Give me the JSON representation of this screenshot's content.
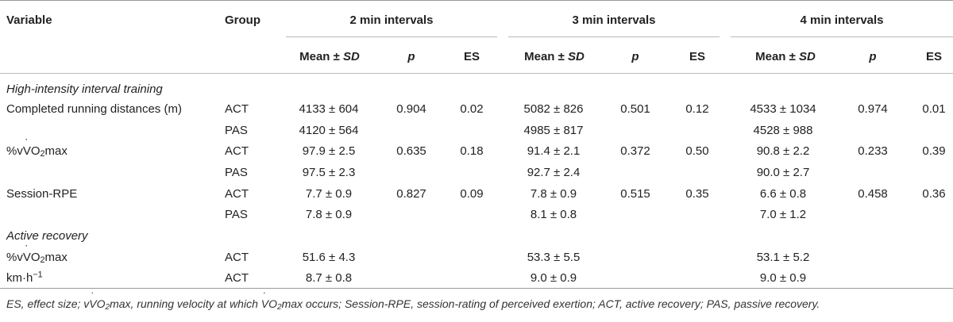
{
  "header": {
    "variable": "Variable",
    "group": "Group",
    "intervals": [
      "2 min intervals",
      "3 min intervals",
      "4 min intervals"
    ],
    "mean_sd_prefix": "Mean ± ",
    "mean_sd_italic": "SD",
    "p": "p",
    "es": "ES"
  },
  "sections": {
    "hiit": "High-intensity interval training",
    "active_recovery": "Active recovery"
  },
  "labels": {
    "distance": "Completed running distances (m)",
    "vo2_pre": "%v",
    "vo2_v": "V",
    "vo2_sub": "O",
    "vo2_two": "2",
    "vo2_post": "max",
    "rpe": "Session-RPE",
    "kmh_base": "km·h",
    "kmh_sup": "−1"
  },
  "rows": {
    "distance_act": {
      "group": "ACT",
      "m2": "4133 ± 604",
      "p2": "0.904",
      "es2": "0.02",
      "m3": "5082 ± 826",
      "p3": "0.501",
      "es3": "0.12",
      "m4": "4533 ± 1034",
      "p4": "0.974",
      "es4": "0.01"
    },
    "distance_pas": {
      "group": "PAS",
      "m2": "4120 ± 564",
      "m3": "4985 ± 817",
      "m4": "4528 ± 988"
    },
    "vo2_act": {
      "group": "ACT",
      "m2": "97.9 ± 2.5",
      "p2": "0.635",
      "es2": "0.18",
      "m3": "91.4 ± 2.1",
      "p3": "0.372",
      "es3": "0.50",
      "m4": "90.8 ± 2.2",
      "p4": "0.233",
      "es4": "0.39"
    },
    "vo2_pas": {
      "group": "PAS",
      "m2": "97.5 ± 2.3",
      "m3": "92.7 ± 2.4",
      "m4": "90.0 ± 2.7"
    },
    "rpe_act": {
      "group": "ACT",
      "m2": "7.7 ± 0.9",
      "p2": "0.827",
      "es2": "0.09",
      "m3": "7.8 ± 0.9",
      "p3": "0.515",
      "es3": "0.35",
      "m4": "6.6 ± 0.8",
      "p4": "0.458",
      "es4": "0.36"
    },
    "rpe_pas": {
      "group": "PAS",
      "m2": "7.8 ± 0.9",
      "m3": "8.1 ± 0.8",
      "m4": "7.0 ± 1.2"
    },
    "ar_vo2_act": {
      "group": "ACT",
      "m2": "51.6 ± 4.3",
      "m3": "53.3 ± 5.5",
      "m4": "53.1 ± 5.2"
    },
    "ar_kmh_act": {
      "group": "ACT",
      "m2": "8.7 ± 0.8",
      "m3": "9.0 ± 0.9",
      "m4": "9.0 ± 0.9"
    }
  },
  "footnote": {
    "part1": "ES, effect size; v",
    "v1": "V",
    "o1": "O",
    "two1": "2",
    "part2": "max, running velocity at which ",
    "v2": "V",
    "o2": "O",
    "two2": "2",
    "part3": "max occurs; Session-RPE, session-rating of perceived exertion; ACT, active recovery; PAS, passive recovery."
  }
}
